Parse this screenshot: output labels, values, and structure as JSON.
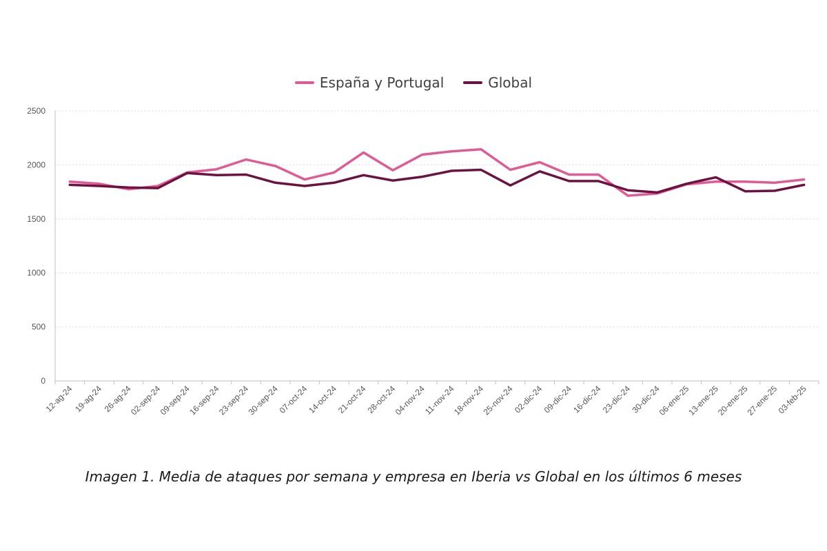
{
  "chart_data": {
    "type": "line",
    "categories": [
      "12-ag-24",
      "19-ag-24",
      "26-ag-24",
      "02-sep-24",
      "09-sep-24",
      "16-sep-24",
      "23-sep-24",
      "30-sep-24",
      "07-oct-24",
      "14-oct-24",
      "21-oct-24",
      "28-oct-24",
      "04-nov-24",
      "11-nov-24",
      "18-nov-24",
      "25-nov-24",
      "02-dic-24",
      "09-dic-24",
      "16-dic-24",
      "23-dic-24",
      "30-dic-24",
      "06-ene-25",
      "13-ene-25",
      "20-ene-25",
      "27-ene-25",
      "03-feb-25"
    ],
    "series": [
      {
        "name": "España y Portugal",
        "color": "#e05a93",
        "values": [
          1845,
          1825,
          1775,
          1805,
          1930,
          1960,
          2050,
          1990,
          1865,
          1930,
          2115,
          1950,
          2095,
          2125,
          2145,
          1955,
          2025,
          1910,
          1910,
          1715,
          1735,
          1820,
          1845,
          1845,
          1835,
          1865
        ]
      },
      {
        "name": "Global",
        "color": "#6d1240",
        "values": [
          1815,
          1805,
          1790,
          1785,
          1925,
          1905,
          1910,
          1835,
          1805,
          1835,
          1905,
          1855,
          1890,
          1945,
          1955,
          1810,
          1940,
          1850,
          1850,
          1765,
          1745,
          1825,
          1885,
          1755,
          1760,
          1815
        ]
      }
    ],
    "ylim": [
      0,
      2500
    ],
    "yticks": [
      0,
      500,
      1000,
      1500,
      2000,
      2500
    ],
    "grid": true,
    "legend_position": "top-center",
    "caption": "Imagen 1. Media de ataques por semana y empresa en Iberia vs Global en los últimos 6 meses"
  }
}
